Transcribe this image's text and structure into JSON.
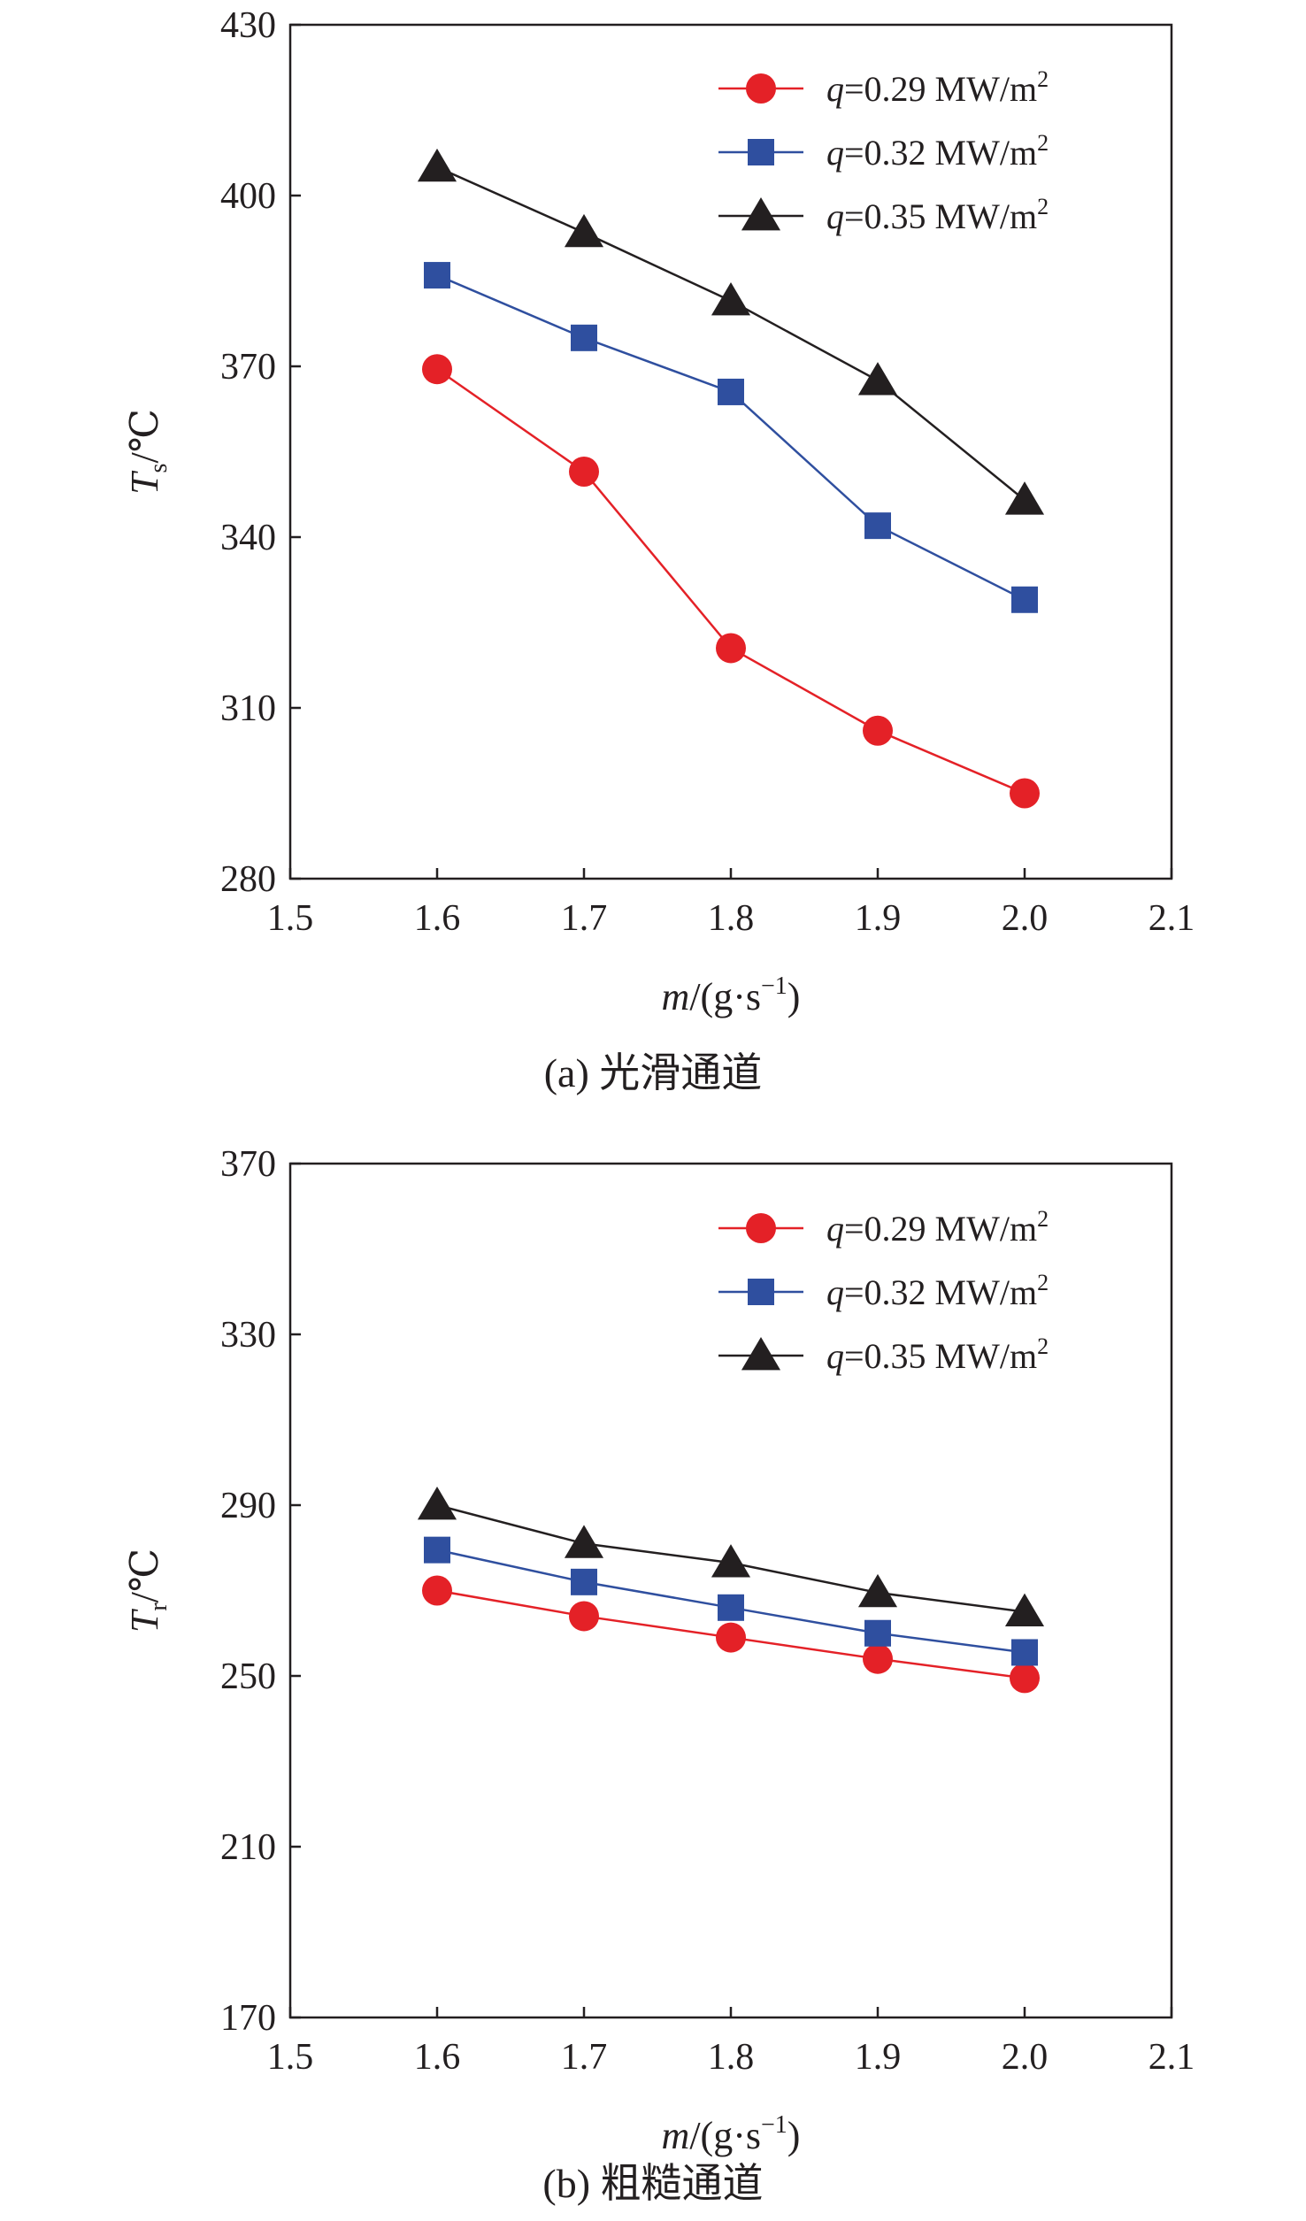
{
  "chart_data": [
    {
      "type": "line",
      "caption": "(a) 光滑通道",
      "ylabel_main": "T",
      "ylabel_sub": "s",
      "ylabel_unit": "/℃",
      "xlabel_main": "m",
      "xlabel_unit": "/(g·s",
      "xlabel_exp": "−1",
      "xlabel_close": ")",
      "xlim": [
        1.5,
        2.1
      ],
      "ylim": [
        280,
        430
      ],
      "xticks": [
        "1.5",
        "1.6",
        "1.7",
        "1.8",
        "1.9",
        "2.0",
        "2.1"
      ],
      "yticks": [
        "280",
        "310",
        "340",
        "370",
        "400",
        "430"
      ],
      "x": [
        1.6,
        1.7,
        1.8,
        1.9,
        2.0
      ],
      "series": [
        {
          "legend_var": "q",
          "legend_rest": "=0.29 MW/m",
          "legend_exp": "2",
          "marker": "circle",
          "color": "#e42127",
          "values": [
            369.5,
            351.5,
            320.5,
            306,
            295
          ]
        },
        {
          "legend_var": "q",
          "legend_rest": "=0.32 MW/m",
          "legend_exp": "2",
          "marker": "square",
          "color": "#2f4f9f",
          "values": [
            386,
            375,
            365.5,
            342,
            329
          ]
        },
        {
          "legend_var": "q",
          "legend_rest": "=0.35 MW/m",
          "legend_exp": "2",
          "marker": "triangle",
          "color": "#231f20",
          "values": [
            405,
            393.5,
            381.5,
            367.5,
            346.5
          ]
        }
      ],
      "legend_position": "top-right",
      "grid": false
    },
    {
      "type": "line",
      "caption": "(b) 粗糙通道",
      "ylabel_main": "T",
      "ylabel_sub": "r",
      "ylabel_unit": "/℃",
      "xlabel_main": "m",
      "xlabel_unit": "/(g·s",
      "xlabel_exp": "−1",
      "xlabel_close": ")",
      "xlim": [
        1.5,
        2.1
      ],
      "ylim": [
        170,
        370
      ],
      "xticks": [
        "1.5",
        "1.6",
        "1.7",
        "1.8",
        "1.9",
        "2.0",
        "2.1"
      ],
      "yticks": [
        "170",
        "210",
        "250",
        "290",
        "330",
        "370"
      ],
      "x": [
        1.6,
        1.7,
        1.8,
        1.9,
        2.0
      ],
      "series": [
        {
          "legend_var": "q",
          "legend_rest": "=0.29 MW/m",
          "legend_exp": "2",
          "marker": "circle",
          "color": "#e42127",
          "values": [
            270,
            264,
            259,
            254,
            249.5
          ]
        },
        {
          "legend_var": "q",
          "legend_rest": "=0.32 MW/m",
          "legend_exp": "2",
          "marker": "square",
          "color": "#2f4f9f",
          "values": [
            279.5,
            272,
            266,
            260,
            255.5
          ]
        },
        {
          "legend_var": "q",
          "legend_rest": "=0.35 MW/m",
          "legend_exp": "2",
          "marker": "triangle",
          "color": "#231f20",
          "values": [
            290,
            281,
            276.5,
            269.5,
            265
          ]
        }
      ],
      "legend_position": "top-right",
      "grid": false
    }
  ]
}
